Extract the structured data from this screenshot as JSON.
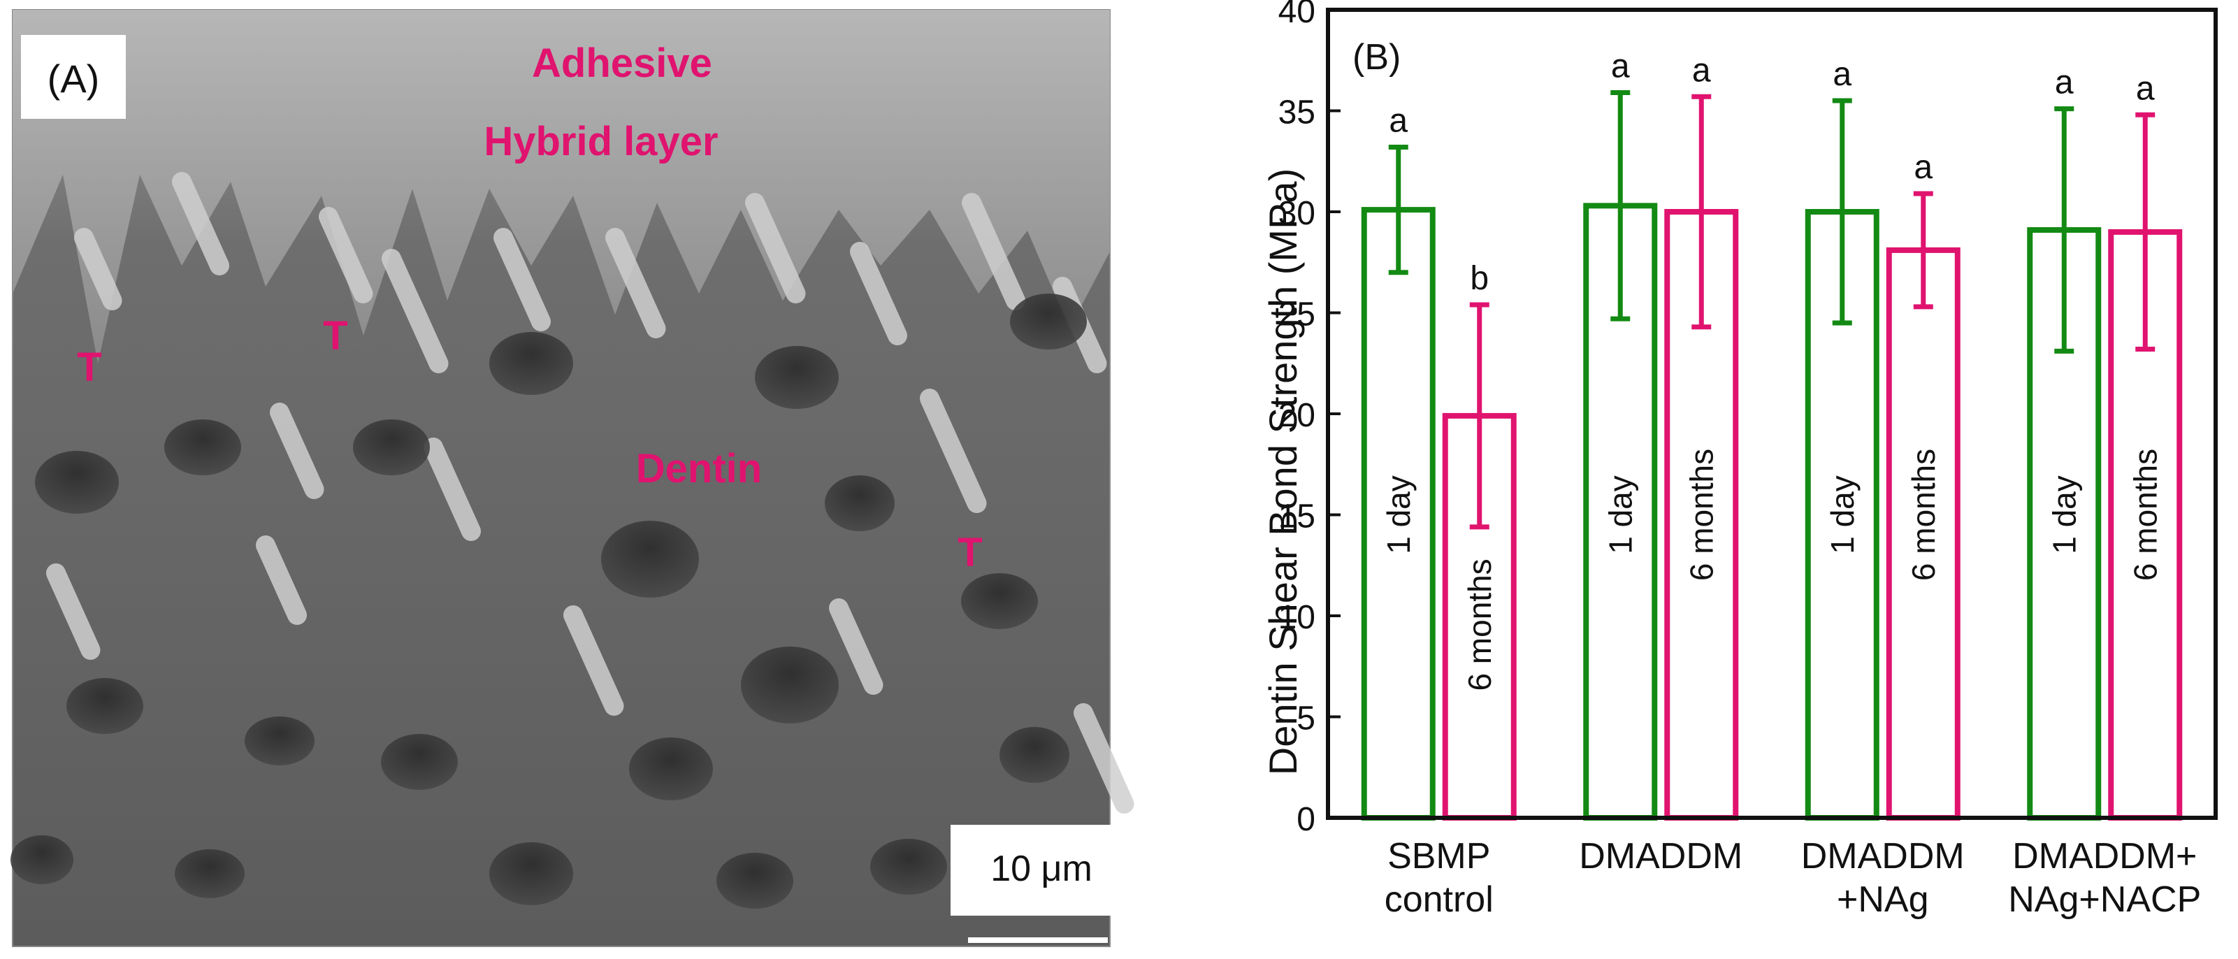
{
  "panel_a": {
    "label": "(A)",
    "annotations": {
      "adhesive": "Adhesive",
      "hybrid_layer": "Hybrid layer",
      "dentin": "Dentin",
      "tag": "T"
    },
    "scale_bar_label": "10 μm",
    "annotation_color": "#e0136f"
  },
  "chart_data": {
    "type": "bar",
    "panel_label": "(B)",
    "title": "",
    "xlabel": "",
    "ylabel": "Dentin Shear Bond Strength  (MPa)",
    "ylim": [
      0,
      40
    ],
    "yticks": [
      0,
      5,
      10,
      15,
      20,
      25,
      30,
      35,
      40
    ],
    "grid": false,
    "legend": "none",
    "categories": [
      [
        "SBMP",
        "control"
      ],
      [
        "DMADDM"
      ],
      [
        "DMADDM",
        "+NAg"
      ],
      [
        "DMADDM+",
        "NAg+NACP"
      ]
    ],
    "series": [
      {
        "name": "1 day",
        "color": "#138a13",
        "values": [
          30.1,
          30.3,
          30.0,
          29.1
        ],
        "errors": [
          3.1,
          5.6,
          5.5,
          6.0
        ],
        "significance": [
          "a",
          "a",
          "a",
          "a"
        ]
      },
      {
        "name": "6 months",
        "color": "#e0136f",
        "values": [
          19.9,
          30.0,
          28.1,
          29.0
        ],
        "errors": [
          5.5,
          5.7,
          2.8,
          5.8
        ],
        "significance": [
          "b",
          "a",
          "a",
          "a"
        ]
      }
    ]
  }
}
